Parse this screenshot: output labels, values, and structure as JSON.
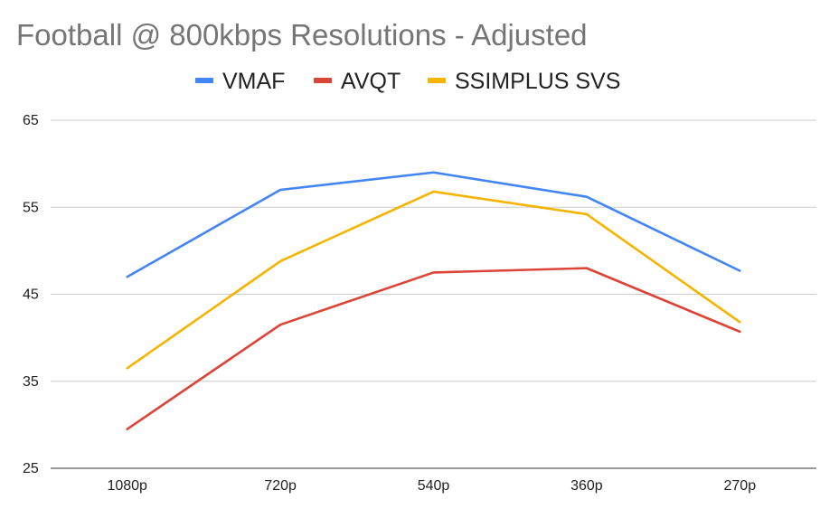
{
  "chart_data": {
    "type": "line",
    "title": "Football @ 800kbps Resolutions - Adjusted",
    "xlabel": "",
    "ylabel": "",
    "categories": [
      "1080p",
      "720p",
      "540p",
      "360p",
      "270p"
    ],
    "ylim": [
      25,
      65
    ],
    "yticks": [
      25,
      35,
      45,
      55,
      65
    ],
    "grid": true,
    "legend_position": "top",
    "series": [
      {
        "name": "VMAF",
        "color": "#4285F4",
        "values": [
          47,
          57,
          59,
          56.2,
          47.7
        ]
      },
      {
        "name": "AVQT",
        "color": "#DB4437",
        "values": [
          29.5,
          41.5,
          47.5,
          48,
          40.7
        ]
      },
      {
        "name": "SSIMPLUS SVS",
        "color": "#F4B400",
        "values": [
          36.5,
          48.8,
          56.8,
          54.2,
          41.8
        ]
      }
    ]
  }
}
